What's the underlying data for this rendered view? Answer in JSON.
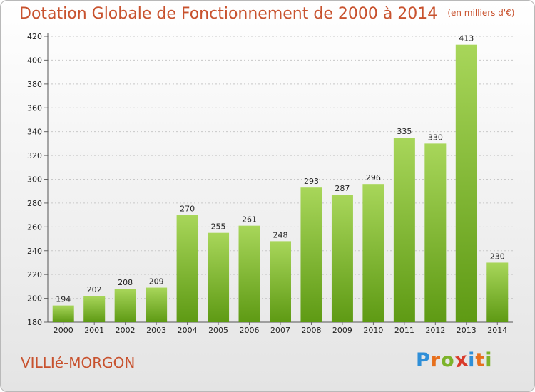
{
  "title": "Dotation Globale de Fonctionnement de 2000 à 2014",
  "subtitle": "(en milliers d'€)",
  "commune": "VILLIé-MORGON",
  "logo": {
    "letters": [
      "P",
      "r",
      "o",
      "x",
      "i",
      "t",
      "i"
    ],
    "colors": [
      "#2f8fd8",
      "#e7701d",
      "#7cb32a",
      "#d93b2b",
      "#2f8fd8",
      "#e7701d",
      "#7cb32a"
    ]
  },
  "colors": {
    "bar_top": "#a8d65a",
    "bar_bottom": "#5e9a14",
    "title": "#c8522e",
    "grid": "#c8c8c8"
  },
  "chart_data": {
    "type": "bar",
    "title": "Dotation Globale de Fonctionnement de 2000 à 2014",
    "subtitle": "(en milliers d'€)",
    "categories": [
      "2000",
      "2001",
      "2002",
      "2003",
      "2004",
      "2005",
      "2006",
      "2007",
      "2008",
      "2009",
      "2010",
      "2011",
      "2012",
      "2013",
      "2014"
    ],
    "values": [
      194,
      202,
      208,
      209,
      270,
      255,
      261,
      248,
      293,
      287,
      296,
      335,
      330,
      413,
      230
    ],
    "ylim": [
      180,
      420
    ],
    "yticks": [
      180,
      200,
      220,
      240,
      260,
      280,
      300,
      320,
      340,
      360,
      380,
      400,
      420
    ],
    "grid": true,
    "xlabel": "",
    "ylabel": ""
  }
}
